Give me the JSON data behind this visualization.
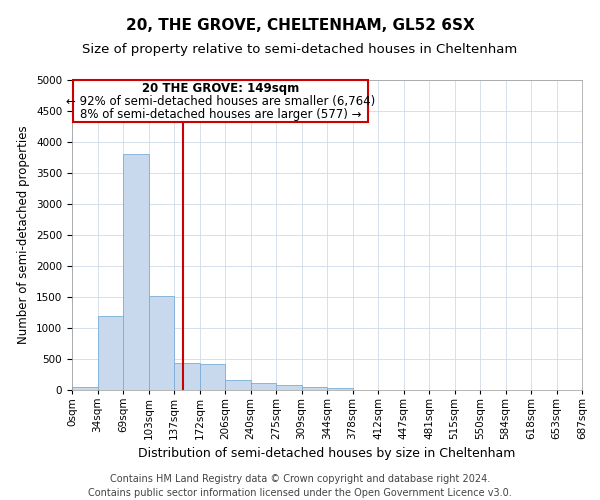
{
  "title": "20, THE GROVE, CHELTENHAM, GL52 6SX",
  "subtitle": "Size of property relative to semi-detached houses in Cheltenham",
  "xlabel": "Distribution of semi-detached houses by size in Cheltenham",
  "ylabel": "Number of semi-detached properties",
  "footer_line1": "Contains HM Land Registry data © Crown copyright and database right 2024.",
  "footer_line2": "Contains public sector information licensed under the Open Government Licence v3.0.",
  "bin_labels": [
    "0sqm",
    "34sqm",
    "69sqm",
    "103sqm",
    "137sqm",
    "172sqm",
    "206sqm",
    "240sqm",
    "275sqm",
    "309sqm",
    "344sqm",
    "378sqm",
    "412sqm",
    "447sqm",
    "481sqm",
    "515sqm",
    "550sqm",
    "584sqm",
    "618sqm",
    "653sqm",
    "687sqm"
  ],
  "bar_values": [
    50,
    1200,
    3800,
    1520,
    430,
    420,
    165,
    115,
    75,
    50,
    40,
    0,
    0,
    0,
    0,
    0,
    0,
    0,
    0,
    0
  ],
  "bar_color": "#c8d9ee",
  "bar_edge_color": "#7aadd6",
  "grid_color": "#d0dae8",
  "vline_color": "#cc0000",
  "vline_x": 4.343,
  "annotation_text_line1": "20 THE GROVE: 149sqm",
  "annotation_text_line2": "← 92% of semi-detached houses are smaller (6,764)",
  "annotation_text_line3": "8% of semi-detached houses are larger (577) →",
  "annotation_box_color": "#cc0000",
  "ylim": [
    0,
    5000
  ],
  "yticks": [
    0,
    500,
    1000,
    1500,
    2000,
    2500,
    3000,
    3500,
    4000,
    4500,
    5000
  ],
  "title_fontsize": 11,
  "subtitle_fontsize": 9.5,
  "xlabel_fontsize": 9,
  "ylabel_fontsize": 8.5,
  "tick_fontsize": 7.5,
  "annotation_fontsize": 8.5,
  "footer_fontsize": 7
}
